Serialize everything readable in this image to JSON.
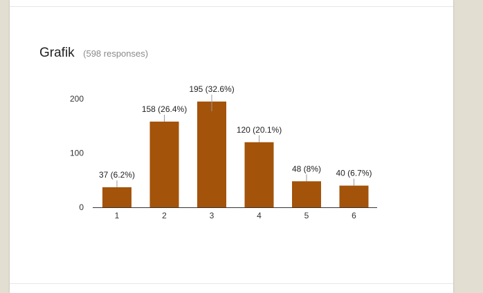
{
  "form": {
    "question_title": "Grafik",
    "response_count": "(598 responses)"
  },
  "colors": {
    "bar": "#a3530a",
    "page_background": "#e2dfd2",
    "card": "#ffffff"
  },
  "chart_data": {
    "type": "bar",
    "categories": [
      "1",
      "2",
      "3",
      "4",
      "5",
      "6"
    ],
    "values": [
      37,
      158,
      195,
      120,
      48,
      40
    ],
    "data_labels": [
      "37 (6.2%)",
      "158 (26.4%)",
      "195 (32.6%)",
      "120 (20.1%)",
      "48 (8%)",
      "40 (6.7%)"
    ],
    "yticks": [
      0,
      100,
      200
    ],
    "ylim": [
      0,
      200
    ],
    "title": "Grafik",
    "xlabel": "",
    "ylabel": "",
    "grid": false,
    "legend": "none"
  }
}
